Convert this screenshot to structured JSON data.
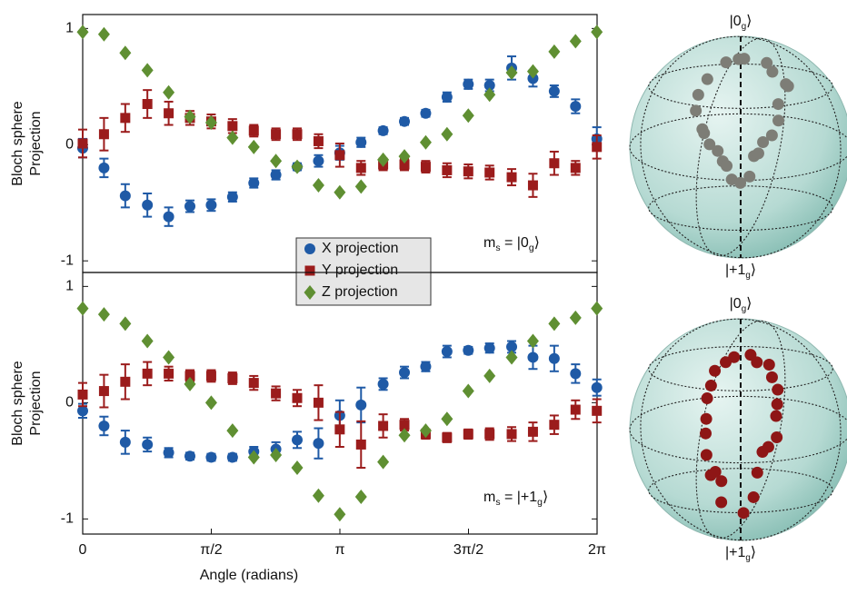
{
  "chart_data": [
    {
      "type": "scatter",
      "ylabel": [
        "Bloch sphere",
        "Projection"
      ],
      "x": [
        0,
        0.26,
        0.52,
        0.79,
        1.05,
        1.31,
        1.57,
        1.83,
        2.09,
        2.36,
        2.62,
        2.88,
        3.14,
        3.4,
        3.67,
        3.93,
        4.19,
        4.45,
        4.71,
        4.97,
        5.24,
        5.5,
        5.76,
        6.02,
        6.28
      ],
      "xlim": [
        0,
        6.2832
      ],
      "ylim": [
        -1.1,
        1.12
      ],
      "yticks": [
        -1,
        0,
        1
      ],
      "legend": "center",
      "annotation": [
        {
          "text": "m"
        },
        {
          "text": "s",
          "sub": true
        },
        {
          "text": " = |0"
        },
        {
          "text": "g",
          "sub": true
        },
        {
          "text": "⟩"
        }
      ],
      "series": [
        {
          "name": "X projection",
          "color": "#1f5aa6",
          "marker": "circle",
          "values": [
            -0.03,
            -0.2,
            -0.44,
            -0.52,
            -0.62,
            -0.53,
            -0.52,
            -0.45,
            -0.33,
            -0.26,
            -0.19,
            -0.14,
            -0.07,
            0.02,
            0.12,
            0.2,
            0.27,
            0.41,
            0.52,
            0.51,
            0.66,
            0.57,
            0.46,
            0.33,
            0.05
          ],
          "errors": [
            0.08,
            0.08,
            0.1,
            0.1,
            0.08,
            0.05,
            0.05,
            0.04,
            0.04,
            0.04,
            0.03,
            0.05,
            0.06,
            0.04,
            0.03,
            0.03,
            0.03,
            0.04,
            0.04,
            0.05,
            0.1,
            0.07,
            0.05,
            0.06,
            0.1
          ]
        },
        {
          "name": "Y projection",
          "color": "#9b1c1c",
          "marker": "square",
          "values": [
            0.01,
            0.09,
            0.23,
            0.35,
            0.27,
            0.23,
            0.2,
            0.16,
            0.12,
            0.09,
            0.09,
            0.03,
            -0.09,
            -0.2,
            -0.17,
            -0.17,
            -0.19,
            -0.22,
            -0.23,
            -0.24,
            -0.28,
            -0.35,
            -0.16,
            -0.2,
            -0.02
          ],
          "errors": [
            0.12,
            0.14,
            0.12,
            0.12,
            0.1,
            0.06,
            0.06,
            0.06,
            0.05,
            0.05,
            0.05,
            0.06,
            0.1,
            0.06,
            0.05,
            0.05,
            0.05,
            0.06,
            0.06,
            0.06,
            0.07,
            0.1,
            0.1,
            0.06,
            0.1
          ]
        },
        {
          "name": "Z projection",
          "color": "#5f8f32",
          "marker": "diamond",
          "values": [
            0.97,
            0.95,
            0.79,
            0.64,
            0.45,
            0.24,
            0.19,
            0.06,
            -0.02,
            -0.14,
            -0.19,
            -0.35,
            -0.41,
            -0.36,
            -0.13,
            -0.1,
            0.02,
            0.09,
            0.25,
            0.43,
            0.62,
            0.63,
            0.8,
            0.89,
            0.97
          ]
        }
      ],
      "sphere": {
        "top_label": [
          {
            "text": "|0"
          },
          {
            "text": "g",
            "sub": true
          },
          {
            "text": "⟩"
          }
        ],
        "bottom_label": [
          {
            "text": "|+1"
          },
          {
            "text": "g",
            "sub": true
          },
          {
            "text": "⟩"
          }
        ],
        "dot_color": "#7d7d76"
      }
    },
    {
      "type": "scatter",
      "ylabel": [
        "Bloch sphere",
        "Projection"
      ],
      "xlabel": "Angle (radians)",
      "x": [
        0,
        0.26,
        0.52,
        0.79,
        1.05,
        1.31,
        1.57,
        1.83,
        2.09,
        2.36,
        2.62,
        2.88,
        3.14,
        3.4,
        3.67,
        3.93,
        4.19,
        4.45,
        4.71,
        4.97,
        5.24,
        5.5,
        5.76,
        6.02,
        6.28
      ],
      "xlim": [
        0,
        6.2832
      ],
      "xticks": [
        0,
        {
          "value": 1.5708,
          "label": "π/2"
        },
        {
          "value": 3.1416,
          "label": "π"
        },
        {
          "value": 4.7124,
          "label": "3π/2"
        },
        {
          "value": 6.2832,
          "label": "2π"
        }
      ],
      "ylim": [
        -1.13,
        1.12
      ],
      "yticks": [
        -1,
        0,
        1
      ],
      "annotation": [
        {
          "text": "m"
        },
        {
          "text": "s",
          "sub": true
        },
        {
          "text": " = |+1"
        },
        {
          "text": "g",
          "sub": true
        },
        {
          "text": "⟩"
        }
      ],
      "series": [
        {
          "color": "#1f5aa6",
          "marker": "circle",
          "values": [
            -0.07,
            -0.2,
            -0.34,
            -0.36,
            -0.43,
            -0.46,
            -0.47,
            -0.47,
            -0.42,
            -0.4,
            -0.32,
            -0.35,
            -0.11,
            -0.02,
            0.16,
            0.26,
            0.31,
            0.44,
            0.45,
            0.47,
            0.48,
            0.39,
            0.38,
            0.25,
            0.13
          ],
          "errors": [
            0.06,
            0.08,
            0.1,
            0.06,
            0.04,
            0.03,
            0.03,
            0.03,
            0.04,
            0.06,
            0.07,
            0.13,
            0.13,
            0.15,
            0.05,
            0.05,
            0.04,
            0.05,
            0.03,
            0.04,
            0.05,
            0.1,
            0.11,
            0.08,
            0.07
          ]
        },
        {
          "color": "#9b1c1c",
          "marker": "square",
          "values": [
            0.07,
            0.1,
            0.18,
            0.25,
            0.25,
            0.23,
            0.23,
            0.21,
            0.17,
            0.08,
            0.04,
            0,
            -0.23,
            -0.36,
            -0.2,
            -0.19,
            -0.27,
            -0.3,
            -0.27,
            -0.27,
            -0.27,
            -0.25,
            -0.19,
            -0.06,
            -0.07
          ],
          "errors": [
            0.1,
            0.14,
            0.15,
            0.1,
            0.06,
            0.05,
            0.05,
            0.05,
            0.06,
            0.06,
            0.07,
            0.15,
            0.15,
            0.2,
            0.1,
            0.05,
            0.04,
            0.04,
            0.04,
            0.05,
            0.06,
            0.08,
            0.08,
            0.08,
            0.1
          ]
        },
        {
          "color": "#5f8f32",
          "marker": "diamond",
          "values": [
            0.81,
            0.76,
            0.68,
            0.53,
            0.39,
            0.16,
            0,
            -0.24,
            -0.47,
            -0.45,
            -0.56,
            -0.8,
            -0.96,
            -0.81,
            -0.51,
            -0.28,
            -0.24,
            -0.14,
            0.1,
            0.23,
            0.39,
            0.53,
            0.68,
            0.73,
            0.81
          ]
        }
      ],
      "sphere": {
        "top_label": [
          {
            "text": "|0"
          },
          {
            "text": "g",
            "sub": true
          },
          {
            "text": "⟩"
          }
        ],
        "bottom_label": [
          {
            "text": "|+1"
          },
          {
            "text": "g",
            "sub": true
          },
          {
            "text": "⟩"
          }
        ],
        "dot_color": "#8e1616"
      }
    }
  ]
}
